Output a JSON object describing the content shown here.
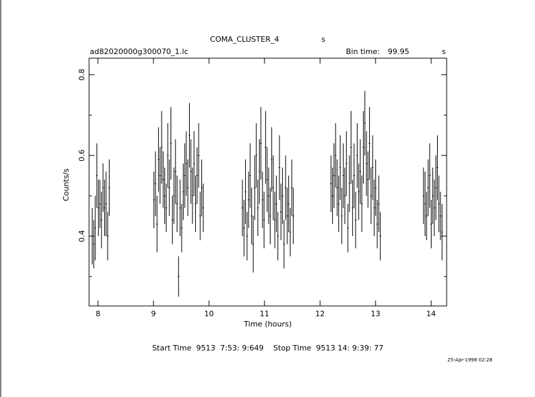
{
  "chart_data": {
    "type": "errorbar",
    "title": "COMA_CLUSTER_4",
    "title_unit": "s",
    "file": "ad82020000g300070_1.lc",
    "bin_time_label": "Bin time:",
    "bin_time": 99.95,
    "bin_time_unit": "s",
    "xlabel": "Time (hours)",
    "ylabel": "Counts/s",
    "footer": "Start Time  9513  7:53: 9:649    Stop Time  9513 14: 9:39: 77",
    "date": "25-Apr-1998 02:28",
    "xlim": [
      7.84,
      14.28
    ],
    "ylim": [
      0.227,
      0.841
    ],
    "xticks": [
      8,
      9,
      10,
      11,
      12,
      13,
      14
    ],
    "yticks": [
      0.4,
      0.6,
      0.8
    ],
    "yminor": [
      0.3,
      0.5,
      0.7
    ],
    "color": "#000000",
    "x": [
      7.897,
      7.925,
      7.952,
      7.98,
      8.008,
      8.036,
      8.064,
      8.091,
      8.119,
      8.147,
      8.175,
      8.203,
      9.008,
      9.036,
      9.064,
      9.091,
      9.119,
      9.147,
      9.175,
      9.203,
      9.23,
      9.258,
      9.286,
      9.314,
      9.341,
      9.369,
      9.397,
      9.425,
      9.452,
      9.48,
      9.508,
      9.536,
      9.564,
      9.591,
      9.619,
      9.647,
      9.675,
      9.703,
      9.73,
      9.758,
      9.786,
      9.814,
      9.841,
      9.869,
      9.897,
      10.602,
      10.63,
      10.658,
      10.686,
      10.713,
      10.741,
      10.769,
      10.797,
      10.824,
      10.852,
      10.88,
      10.908,
      10.935,
      10.963,
      10.991,
      11.019,
      11.047,
      11.074,
      11.102,
      11.13,
      11.158,
      11.185,
      11.213,
      11.241,
      11.269,
      11.296,
      11.324,
      11.352,
      11.38,
      11.408,
      11.435,
      11.463,
      11.491,
      11.519,
      12.197,
      12.225,
      12.252,
      12.28,
      12.308,
      12.336,
      12.363,
      12.391,
      12.419,
      12.447,
      12.475,
      12.502,
      12.53,
      12.558,
      12.586,
      12.613,
      12.641,
      12.669,
      12.697,
      12.725,
      12.752,
      12.78,
      12.808,
      12.836,
      12.863,
      12.891,
      12.919,
      12.947,
      12.975,
      13.002,
      13.03,
      13.058,
      13.086,
      13.863,
      13.891,
      13.919,
      13.947,
      13.975,
      14.002,
      14.03,
      14.058,
      14.086,
      14.113,
      14.141,
      14.169,
      14.197
    ],
    "y": [
      0.4,
      0.38,
      0.42,
      0.55,
      0.47,
      0.48,
      0.44,
      0.52,
      0.47,
      0.48,
      0.4,
      0.52,
      0.49,
      0.53,
      0.43,
      0.59,
      0.55,
      0.62,
      0.54,
      0.5,
      0.47,
      0.6,
      0.52,
      0.63,
      0.44,
      0.5,
      0.56,
      0.48,
      0.3,
      0.47,
      0.42,
      0.51,
      0.55,
      0.58,
      0.52,
      0.65,
      0.56,
      0.5,
      0.58,
      0.48,
      0.55,
      0.6,
      0.45,
      0.52,
      0.47,
      0.47,
      0.42,
      0.51,
      0.4,
      0.49,
      0.55,
      0.45,
      0.38,
      0.52,
      0.6,
      0.47,
      0.56,
      0.63,
      0.49,
      0.44,
      0.62,
      0.54,
      0.5,
      0.45,
      0.59,
      0.52,
      0.44,
      0.48,
      0.4,
      0.57,
      0.46,
      0.5,
      0.38,
      0.52,
      0.45,
      0.48,
      0.41,
      0.52,
      0.45,
      0.53,
      0.5,
      0.55,
      0.6,
      0.52,
      0.48,
      0.57,
      0.45,
      0.55,
      0.5,
      0.58,
      0.42,
      0.53,
      0.62,
      0.47,
      0.55,
      0.44,
      0.6,
      0.51,
      0.56,
      0.48,
      0.62,
      0.68,
      0.58,
      0.54,
      0.63,
      0.5,
      0.57,
      0.47,
      0.52,
      0.43,
      0.48,
      0.4,
      0.5,
      0.48,
      0.45,
      0.52,
      0.55,
      0.43,
      0.5,
      0.47,
      0.52,
      0.57,
      0.48,
      0.45,
      0.41
    ],
    "yerr": [
      0.07,
      0.06,
      0.08,
      0.08,
      0.07,
      0.06,
      0.07,
      0.06,
      0.07,
      0.08,
      0.06,
      0.07,
      0.07,
      0.08,
      0.07,
      0.08,
      0.07,
      0.09,
      0.07,
      0.07,
      0.06,
      0.08,
      0.07,
      0.09,
      0.06,
      0.07,
      0.08,
      0.07,
      0.05,
      0.07,
      0.06,
      0.07,
      0.08,
      0.08,
      0.07,
      0.08,
      0.08,
      0.07,
      0.08,
      0.07,
      0.07,
      0.08,
      0.06,
      0.07,
      0.06,
      0.07,
      0.07,
      0.08,
      0.06,
      0.07,
      0.08,
      0.07,
      0.07,
      0.08,
      0.08,
      0.07,
      0.08,
      0.09,
      0.07,
      0.07,
      0.09,
      0.08,
      0.07,
      0.07,
      0.08,
      0.08,
      0.07,
      0.07,
      0.06,
      0.08,
      0.07,
      0.07,
      0.06,
      0.08,
      0.07,
      0.07,
      0.06,
      0.07,
      0.07,
      0.07,
      0.07,
      0.08,
      0.08,
      0.07,
      0.07,
      0.08,
      0.07,
      0.08,
      0.07,
      0.08,
      0.06,
      0.07,
      0.09,
      0.07,
      0.08,
      0.07,
      0.08,
      0.07,
      0.08,
      0.07,
      0.09,
      0.08,
      0.08,
      0.07,
      0.09,
      0.07,
      0.08,
      0.07,
      0.07,
      0.06,
      0.07,
      0.06,
      0.07,
      0.08,
      0.06,
      0.07,
      0.08,
      0.06,
      0.07,
      0.07,
      0.08,
      0.08,
      0.07,
      0.06,
      0.07
    ]
  }
}
